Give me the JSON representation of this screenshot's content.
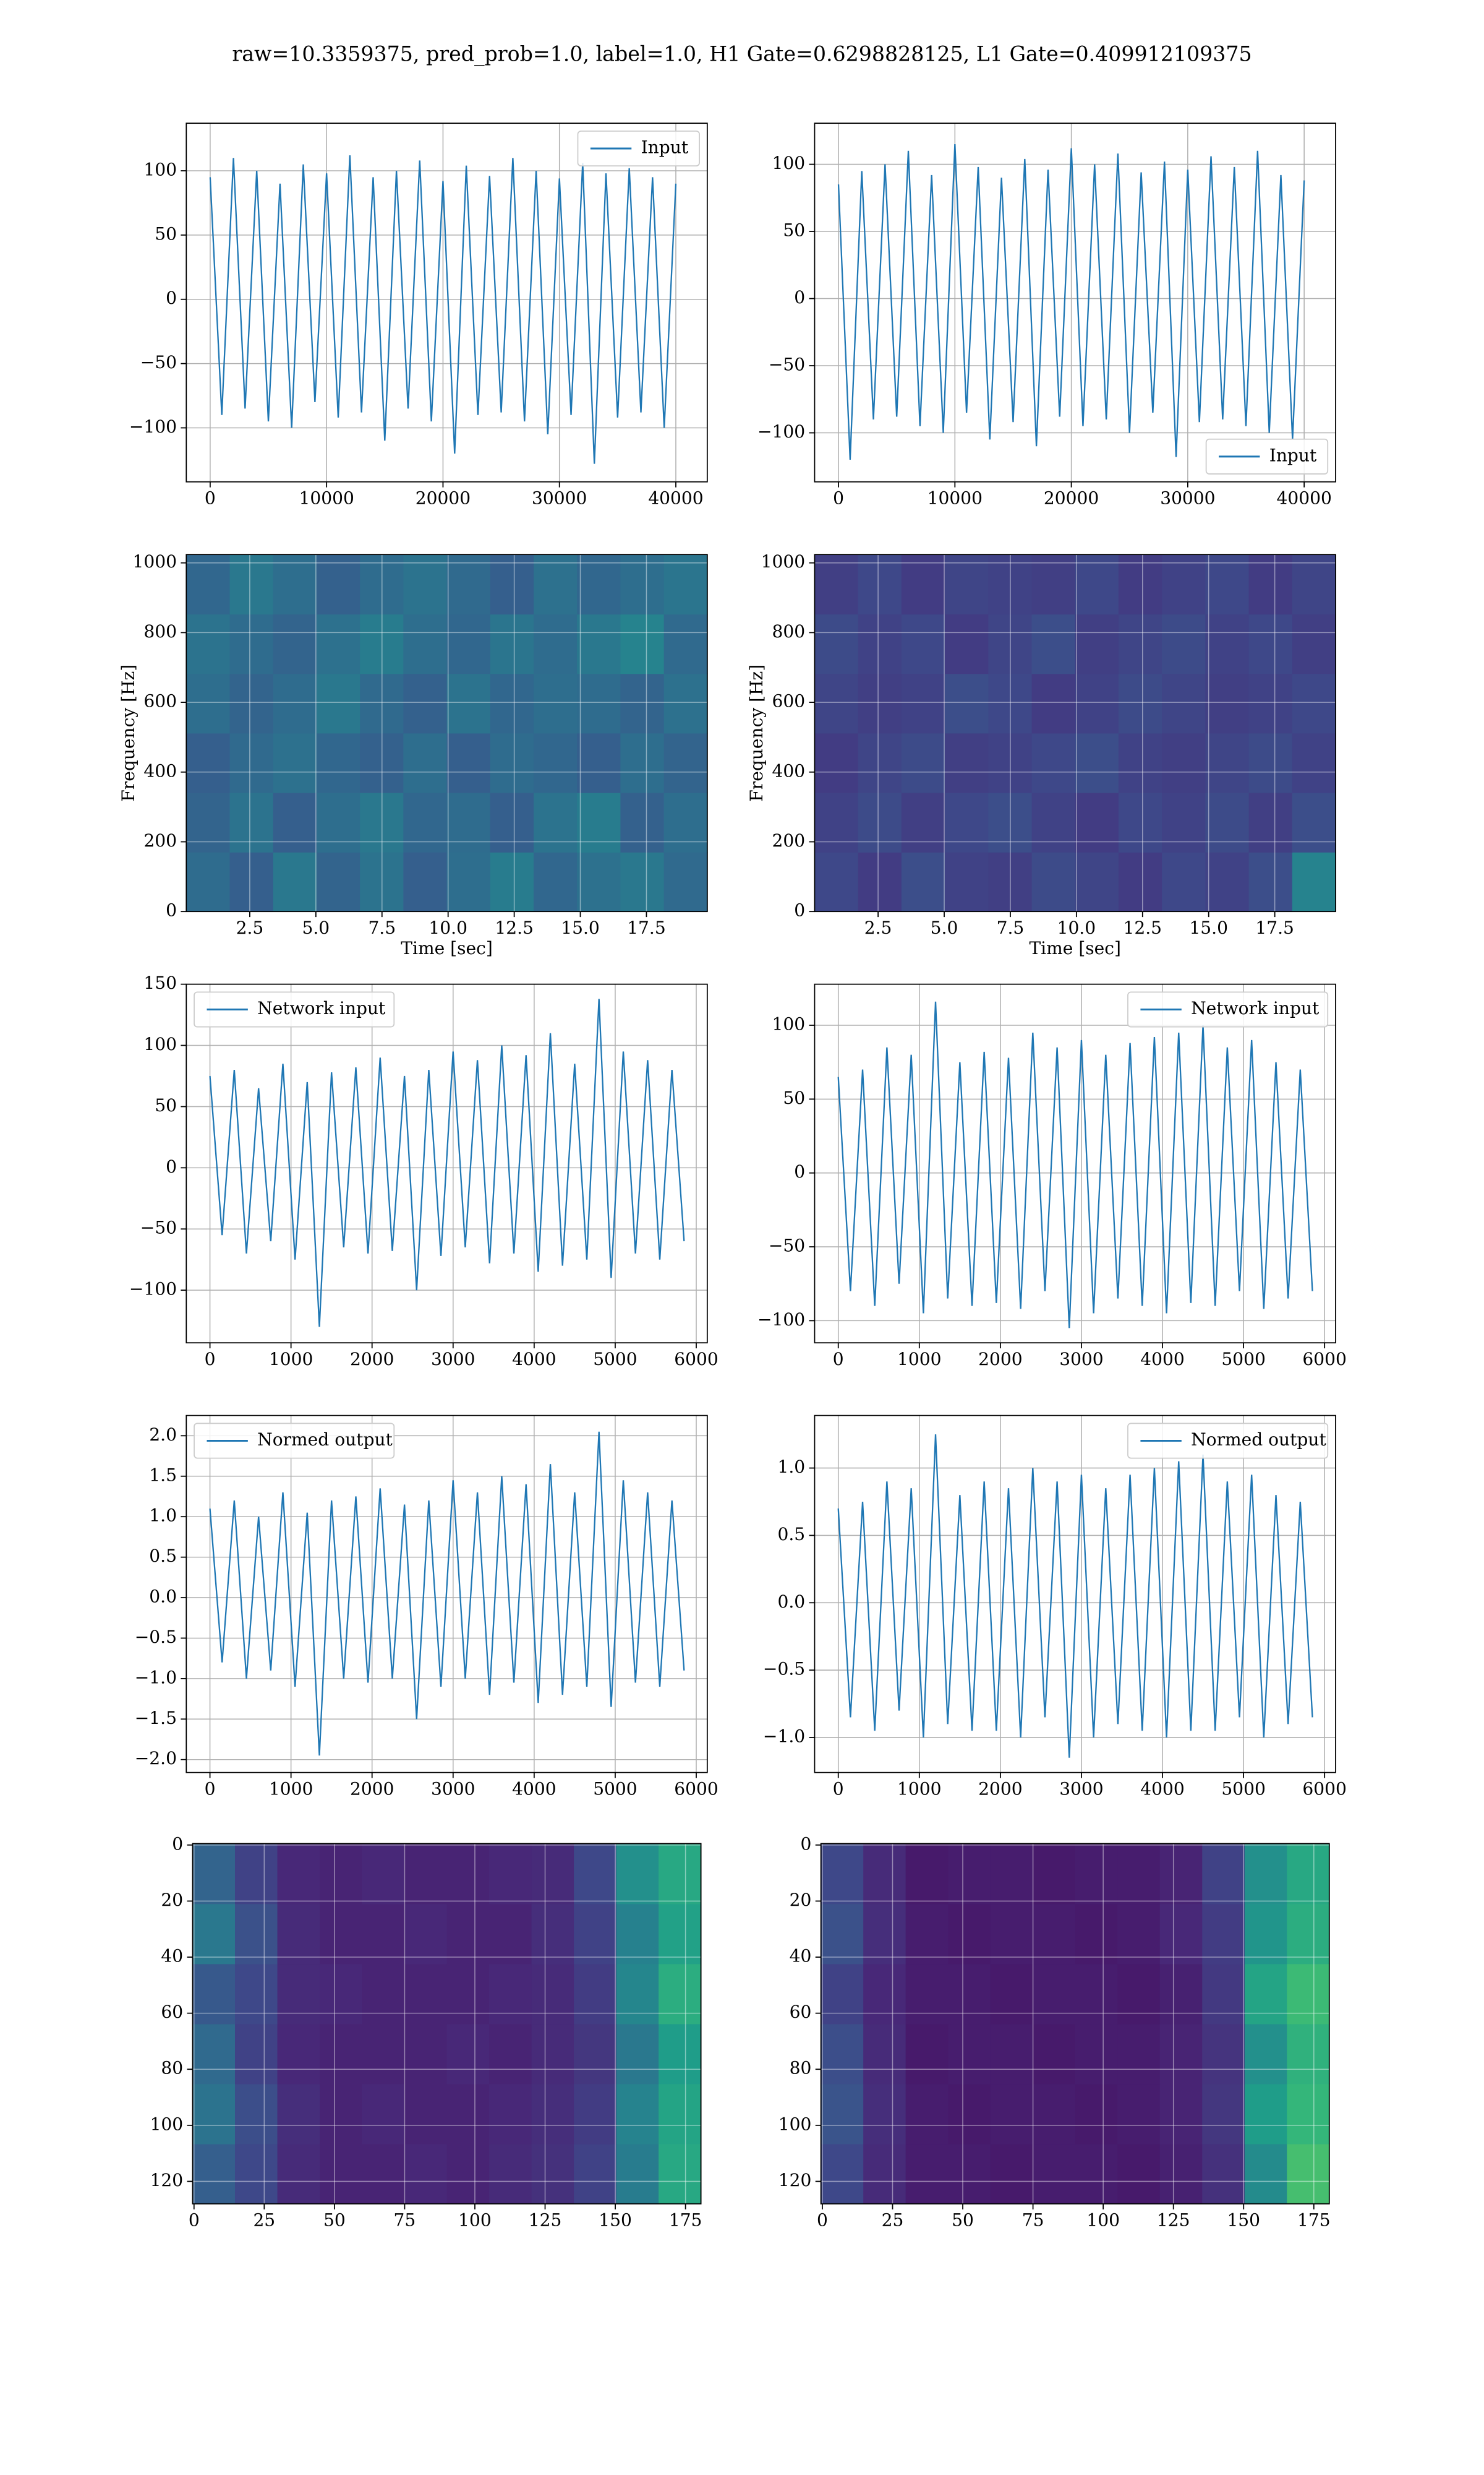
{
  "title": "raw=10.3359375, pred_prob=1.0, label=1.0, H1 Gate=0.6298828125, L1 Gate=0.409912109375",
  "chart_data": [
    {
      "type": "line",
      "legend": "upper right",
      "grid": true,
      "x": [
        0,
        1000,
        2000,
        3000,
        4000,
        5000,
        6000,
        7000,
        8000,
        9000,
        10000,
        11000,
        12000,
        13000,
        14000,
        15000,
        16000,
        17000,
        18000,
        19000,
        20000,
        21000,
        22000,
        23000,
        24000,
        25000,
        26000,
        27000,
        28000,
        29000,
        30000,
        31000,
        32000,
        33000,
        34000,
        35000,
        36000,
        37000,
        38000,
        39000,
        40000
      ],
      "series": [
        {
          "name": "Input",
          "color": "#1f77b4",
          "values": [
            95,
            -90,
            110,
            -85,
            100,
            -95,
            90,
            -100,
            105,
            -80,
            98,
            -92,
            112,
            -88,
            95,
            -110,
            100,
            -85,
            108,
            -95,
            92,
            -120,
            104,
            -90,
            96,
            -88,
            110,
            -95,
            100,
            -105,
            94,
            -90,
            106,
            -128,
            98,
            -92,
            102,
            -88,
            95,
            -100,
            90
          ]
        }
      ],
      "xlim": [
        -2050,
        42700
      ],
      "ylim": [
        -142,
        137
      ],
      "xticks": [
        0,
        10000,
        20000,
        30000,
        40000
      ],
      "yticks": [
        {
          "value": -100,
          "label": "−100"
        },
        {
          "value": -50,
          "label": "−50"
        },
        0,
        50,
        100
      ]
    },
    {
      "type": "line",
      "legend": "lower right",
      "grid": true,
      "x": [
        0,
        1000,
        2000,
        3000,
        4000,
        5000,
        6000,
        7000,
        8000,
        9000,
        10000,
        11000,
        12000,
        13000,
        14000,
        15000,
        16000,
        17000,
        18000,
        19000,
        20000,
        21000,
        22000,
        23000,
        24000,
        25000,
        26000,
        27000,
        28000,
        29000,
        30000,
        31000,
        32000,
        33000,
        34000,
        35000,
        36000,
        37000,
        38000,
        39000,
        40000
      ],
      "series": [
        {
          "name": "Input",
          "color": "#1f77b4",
          "values": [
            85,
            -120,
            95,
            -90,
            100,
            -88,
            110,
            -95,
            92,
            -100,
            115,
            -85,
            98,
            -105,
            90,
            -92,
            104,
            -110,
            96,
            -88,
            112,
            -95,
            100,
            -90,
            108,
            -100,
            94,
            -85,
            102,
            -118,
            96,
            -92,
            106,
            -90,
            98,
            -95,
            110,
            -100,
            92,
            -105,
            88
          ]
        }
      ],
      "xlim": [
        -2050,
        42700
      ],
      "ylim": [
        -136.5,
        130.6
      ],
      "xticks": [
        0,
        10000,
        20000,
        30000,
        40000
      ],
      "yticks": [
        {
          "value": -100,
          "label": "−100"
        },
        {
          "value": -50,
          "label": "−50"
        },
        0,
        50,
        100
      ]
    },
    {
      "type": "heatmap",
      "colorscale": "viridis",
      "grid": true,
      "xlabel": "Time [sec]",
      "ylabel": "Frequency [Hz]",
      "xlim": [
        0.1,
        19.8
      ],
      "ylim": [
        0,
        1024
      ],
      "xticks": [
        2.5,
        {
          "value": 5,
          "label": "5.0"
        },
        7.5,
        {
          "value": 10,
          "label": "10.0"
        },
        12.5,
        {
          "value": 15,
          "label": "15.0"
        },
        17.5
      ],
      "yticks": [
        0,
        200,
        400,
        600,
        800,
        1000
      ],
      "z": [
        [
          0.35,
          0.3,
          0.4,
          0.32,
          0.38,
          0.3,
          0.36,
          0.42,
          0.33,
          0.37,
          0.4,
          0.34
        ],
        [
          0.32,
          0.38,
          0.3,
          0.36,
          0.4,
          0.33,
          0.35,
          0.3,
          0.38,
          0.42,
          0.31,
          0.36
        ],
        [
          0.3,
          0.34,
          0.37,
          0.33,
          0.31,
          0.36,
          0.3,
          0.35,
          0.33,
          0.3,
          0.36,
          0.32
        ],
        [
          0.36,
          0.32,
          0.35,
          0.4,
          0.34,
          0.31,
          0.38,
          0.33,
          0.36,
          0.35,
          0.32,
          0.37
        ],
        [
          0.38,
          0.35,
          0.32,
          0.37,
          0.42,
          0.36,
          0.33,
          0.39,
          0.35,
          0.4,
          0.45,
          0.34
        ],
        [
          0.33,
          0.4,
          0.36,
          0.31,
          0.35,
          0.38,
          0.34,
          0.3,
          0.37,
          0.33,
          0.36,
          0.39
        ]
      ]
    },
    {
      "type": "heatmap",
      "colorscale": "viridis",
      "grid": true,
      "xlabel": "Time [sec]",
      "ylabel": "Frequency [Hz]",
      "xlim": [
        0.1,
        19.8
      ],
      "ylim": [
        0,
        1024
      ],
      "xticks": [
        2.5,
        {
          "value": 5,
          "label": "5.0"
        },
        7.5,
        {
          "value": 10,
          "label": "10.0"
        },
        12.5,
        {
          "value": 15,
          "label": "15.0"
        },
        17.5
      ],
      "yticks": [
        0,
        200,
        400,
        600,
        800,
        1000
      ],
      "z": [
        [
          0.22,
          0.18,
          0.24,
          0.2,
          0.19,
          0.23,
          0.21,
          0.18,
          0.22,
          0.2,
          0.24,
          0.45
        ],
        [
          0.2,
          0.23,
          0.19,
          0.22,
          0.24,
          0.2,
          0.18,
          0.22,
          0.2,
          0.23,
          0.19,
          0.24
        ],
        [
          0.18,
          0.21,
          0.23,
          0.19,
          0.2,
          0.22,
          0.24,
          0.2,
          0.19,
          0.21,
          0.23,
          0.2
        ],
        [
          0.21,
          0.19,
          0.2,
          0.24,
          0.22,
          0.18,
          0.2,
          0.23,
          0.21,
          0.19,
          0.2,
          0.22
        ],
        [
          0.23,
          0.2,
          0.22,
          0.18,
          0.21,
          0.24,
          0.19,
          0.21,
          0.23,
          0.2,
          0.22,
          0.19
        ],
        [
          0.19,
          0.22,
          0.18,
          0.21,
          0.2,
          0.19,
          0.22,
          0.18,
          0.2,
          0.22,
          0.18,
          0.21
        ]
      ]
    },
    {
      "type": "line",
      "legend": "upper left",
      "grid": true,
      "x": [
        0,
        150,
        300,
        450,
        600,
        750,
        900,
        1050,
        1200,
        1350,
        1500,
        1650,
        1800,
        1950,
        2100,
        2250,
        2400,
        2550,
        2700,
        2850,
        3000,
        3150,
        3300,
        3450,
        3600,
        3750,
        3900,
        4050,
        4200,
        4350,
        4500,
        4650,
        4800,
        4950,
        5100,
        5250,
        5400,
        5550,
        5700,
        5850
      ],
      "series": [
        {
          "name": "Network input",
          "color": "#1f77b4",
          "values": [
            75,
            -55,
            80,
            -70,
            65,
            -60,
            85,
            -75,
            70,
            -130,
            78,
            -65,
            82,
            -70,
            90,
            -68,
            75,
            -100,
            80,
            -72,
            95,
            -65,
            88,
            -78,
            100,
            -70,
            92,
            -85,
            110,
            -80,
            85,
            -75,
            138,
            -90,
            95,
            -70,
            88,
            -75,
            80,
            -60
          ]
        }
      ],
      "xlim": [
        -292,
        6136
      ],
      "ylim": [
        -143,
        150
      ],
      "xticks": [
        0,
        1000,
        2000,
        3000,
        4000,
        5000,
        6000
      ],
      "yticks": [
        {
          "value": -100,
          "label": "−100"
        },
        {
          "value": -50,
          "label": "−50"
        },
        0,
        50,
        100,
        150
      ]
    },
    {
      "type": "line",
      "legend": "upper right",
      "grid": true,
      "x": [
        0,
        150,
        300,
        450,
        600,
        750,
        900,
        1050,
        1200,
        1350,
        1500,
        1650,
        1800,
        1950,
        2100,
        2250,
        2400,
        2550,
        2700,
        2850,
        3000,
        3150,
        3300,
        3450,
        3600,
        3750,
        3900,
        4050,
        4200,
        4350,
        4500,
        4650,
        4800,
        4950,
        5100,
        5250,
        5400,
        5550,
        5700,
        5850
      ],
      "series": [
        {
          "name": "Network input",
          "color": "#1f77b4",
          "values": [
            65,
            -80,
            70,
            -90,
            85,
            -75,
            80,
            -95,
            116,
            -85,
            75,
            -90,
            82,
            -88,
            78,
            -92,
            95,
            -80,
            85,
            -105,
            90,
            -95,
            80,
            -85,
            88,
            -90,
            92,
            -95,
            95,
            -88,
            100,
            -90,
            85,
            -80,
            90,
            -92,
            75,
            -85,
            70,
            -80
          ]
        }
      ],
      "xlim": [
        -292,
        6136
      ],
      "ylim": [
        -115,
        127.8
      ],
      "xticks": [
        0,
        1000,
        2000,
        3000,
        4000,
        5000,
        6000
      ],
      "yticks": [
        {
          "value": -100,
          "label": "−100"
        },
        {
          "value": -50,
          "label": "−50"
        },
        0,
        50,
        100
      ]
    },
    {
      "type": "line",
      "legend": "upper left",
      "grid": true,
      "x": [
        0,
        150,
        300,
        450,
        600,
        750,
        900,
        1050,
        1200,
        1350,
        1500,
        1650,
        1800,
        1950,
        2100,
        2250,
        2400,
        2550,
        2700,
        2850,
        3000,
        3150,
        3300,
        3450,
        3600,
        3750,
        3900,
        4050,
        4200,
        4350,
        4500,
        4650,
        4800,
        4950,
        5100,
        5250,
        5400,
        5550,
        5700,
        5850
      ],
      "series": [
        {
          "name": "Normed output",
          "color": "#1f77b4",
          "values": [
            1.1,
            -0.8,
            1.2,
            -1.0,
            1.0,
            -0.9,
            1.3,
            -1.1,
            1.05,
            -1.95,
            1.2,
            -1.0,
            1.25,
            -1.05,
            1.35,
            -1.0,
            1.15,
            -1.5,
            1.2,
            -1.1,
            1.45,
            -1.0,
            1.3,
            -1.2,
            1.5,
            -1.05,
            1.4,
            -1.3,
            1.65,
            -1.2,
            1.3,
            -1.1,
            2.05,
            -1.35,
            1.45,
            -1.05,
            1.3,
            -1.1,
            1.2,
            -0.9
          ]
        }
      ],
      "xlim": [
        -292,
        6136
      ],
      "ylim": [
        -2.16,
        2.25
      ],
      "xticks": [
        0,
        1000,
        2000,
        3000,
        4000,
        5000,
        6000
      ],
      "yticks": [
        {
          "value": -2,
          "label": "−2.0"
        },
        {
          "value": -1.5,
          "label": "−1.5"
        },
        {
          "value": -1,
          "label": "−1.0"
        },
        {
          "value": -0.5,
          "label": "−0.5"
        },
        {
          "value": 0,
          "label": "0.0"
        },
        0.5,
        {
          "value": 1,
          "label": "1.0"
        },
        1.5,
        {
          "value": 2,
          "label": "2.0"
        }
      ]
    },
    {
      "type": "line",
      "legend": "upper right",
      "grid": true,
      "x": [
        0,
        150,
        300,
        450,
        600,
        750,
        900,
        1050,
        1200,
        1350,
        1500,
        1650,
        1800,
        1950,
        2100,
        2250,
        2400,
        2550,
        2700,
        2850,
        3000,
        3150,
        3300,
        3450,
        3600,
        3750,
        3900,
        4050,
        4200,
        4350,
        4500,
        4650,
        4800,
        4950,
        5100,
        5250,
        5400,
        5550,
        5700,
        5850
      ],
      "series": [
        {
          "name": "Normed output",
          "color": "#1f77b4",
          "values": [
            0.7,
            -0.85,
            0.75,
            -0.95,
            0.9,
            -0.8,
            0.85,
            -1.0,
            1.25,
            -0.9,
            0.8,
            -0.95,
            0.9,
            -0.95,
            0.85,
            -1.0,
            1.0,
            -0.85,
            0.9,
            -1.15,
            0.95,
            -1.0,
            0.85,
            -0.9,
            0.95,
            -0.95,
            1.0,
            -1.0,
            1.05,
            -0.95,
            1.1,
            -0.95,
            0.9,
            -0.85,
            0.95,
            -1.0,
            0.8,
            -0.9,
            0.75,
            -0.85
          ]
        }
      ],
      "xlim": [
        -292,
        6136
      ],
      "ylim": [
        -1.26,
        1.39
      ],
      "xticks": [
        0,
        1000,
        2000,
        3000,
        4000,
        5000,
        6000
      ],
      "yticks": [
        {
          "value": -1,
          "label": "−1.0"
        },
        {
          "value": -0.5,
          "label": "−0.5"
        },
        {
          "value": 0,
          "label": "0.0"
        },
        0.5,
        {
          "value": 1,
          "label": "1.0"
        }
      ]
    },
    {
      "type": "heatmap",
      "colorscale": "viridis",
      "grid": true,
      "xlim": [
        -0.5,
        180.5
      ],
      "ylim": [
        128,
        -0.5
      ],
      "xticks": [
        0,
        25,
        50,
        75,
        100,
        125,
        150,
        175
      ],
      "yticks": [
        0,
        20,
        40,
        60,
        80,
        100,
        120
      ],
      "z": [
        [
          0.3,
          0.22,
          0.12,
          0.1,
          0.1,
          0.11,
          0.1,
          0.12,
          0.14,
          0.2,
          0.42,
          0.6
        ],
        [
          0.38,
          0.24,
          0.13,
          0.1,
          0.11,
          0.1,
          0.1,
          0.11,
          0.13,
          0.18,
          0.45,
          0.58
        ],
        [
          0.34,
          0.2,
          0.11,
          0.1,
          0.1,
          0.1,
          0.11,
          0.1,
          0.12,
          0.16,
          0.4,
          0.55
        ],
        [
          0.28,
          0.22,
          0.12,
          0.11,
          0.1,
          0.1,
          0.1,
          0.11,
          0.12,
          0.18,
          0.46,
          0.62
        ],
        [
          0.4,
          0.25,
          0.12,
          0.1,
          0.1,
          0.11,
          0.1,
          0.1,
          0.13,
          0.2,
          0.44,
          0.57
        ],
        [
          0.32,
          0.2,
          0.11,
          0.1,
          0.11,
          0.1,
          0.1,
          0.11,
          0.12,
          0.22,
          0.5,
          0.6
        ]
      ]
    },
    {
      "type": "heatmap",
      "colorscale": "viridis",
      "grid": true,
      "xlim": [
        -0.5,
        180.5
      ],
      "ylim": [
        128,
        -0.5
      ],
      "xticks": [
        0,
        25,
        50,
        75,
        100,
        125,
        150,
        175
      ],
      "yticks": [
        0,
        20,
        40,
        60,
        80,
        100,
        120
      ],
      "z": [
        [
          0.22,
          0.12,
          0.08,
          0.08,
          0.07,
          0.08,
          0.08,
          0.07,
          0.09,
          0.14,
          0.48,
          0.7
        ],
        [
          0.26,
          0.13,
          0.08,
          0.07,
          0.08,
          0.08,
          0.07,
          0.08,
          0.1,
          0.16,
          0.55,
          0.66
        ],
        [
          0.24,
          0.12,
          0.07,
          0.08,
          0.08,
          0.07,
          0.08,
          0.08,
          0.1,
          0.15,
          0.5,
          0.64
        ],
        [
          0.2,
          0.11,
          0.08,
          0.08,
          0.07,
          0.08,
          0.08,
          0.07,
          0.09,
          0.17,
          0.58,
          0.68
        ],
        [
          0.25,
          0.13,
          0.08,
          0.07,
          0.08,
          0.08,
          0.07,
          0.08,
          0.11,
          0.18,
          0.52,
          0.62
        ],
        [
          0.22,
          0.12,
          0.07,
          0.08,
          0.08,
          0.07,
          0.08,
          0.08,
          0.1,
          0.2,
          0.5,
          0.6
        ]
      ]
    }
  ]
}
